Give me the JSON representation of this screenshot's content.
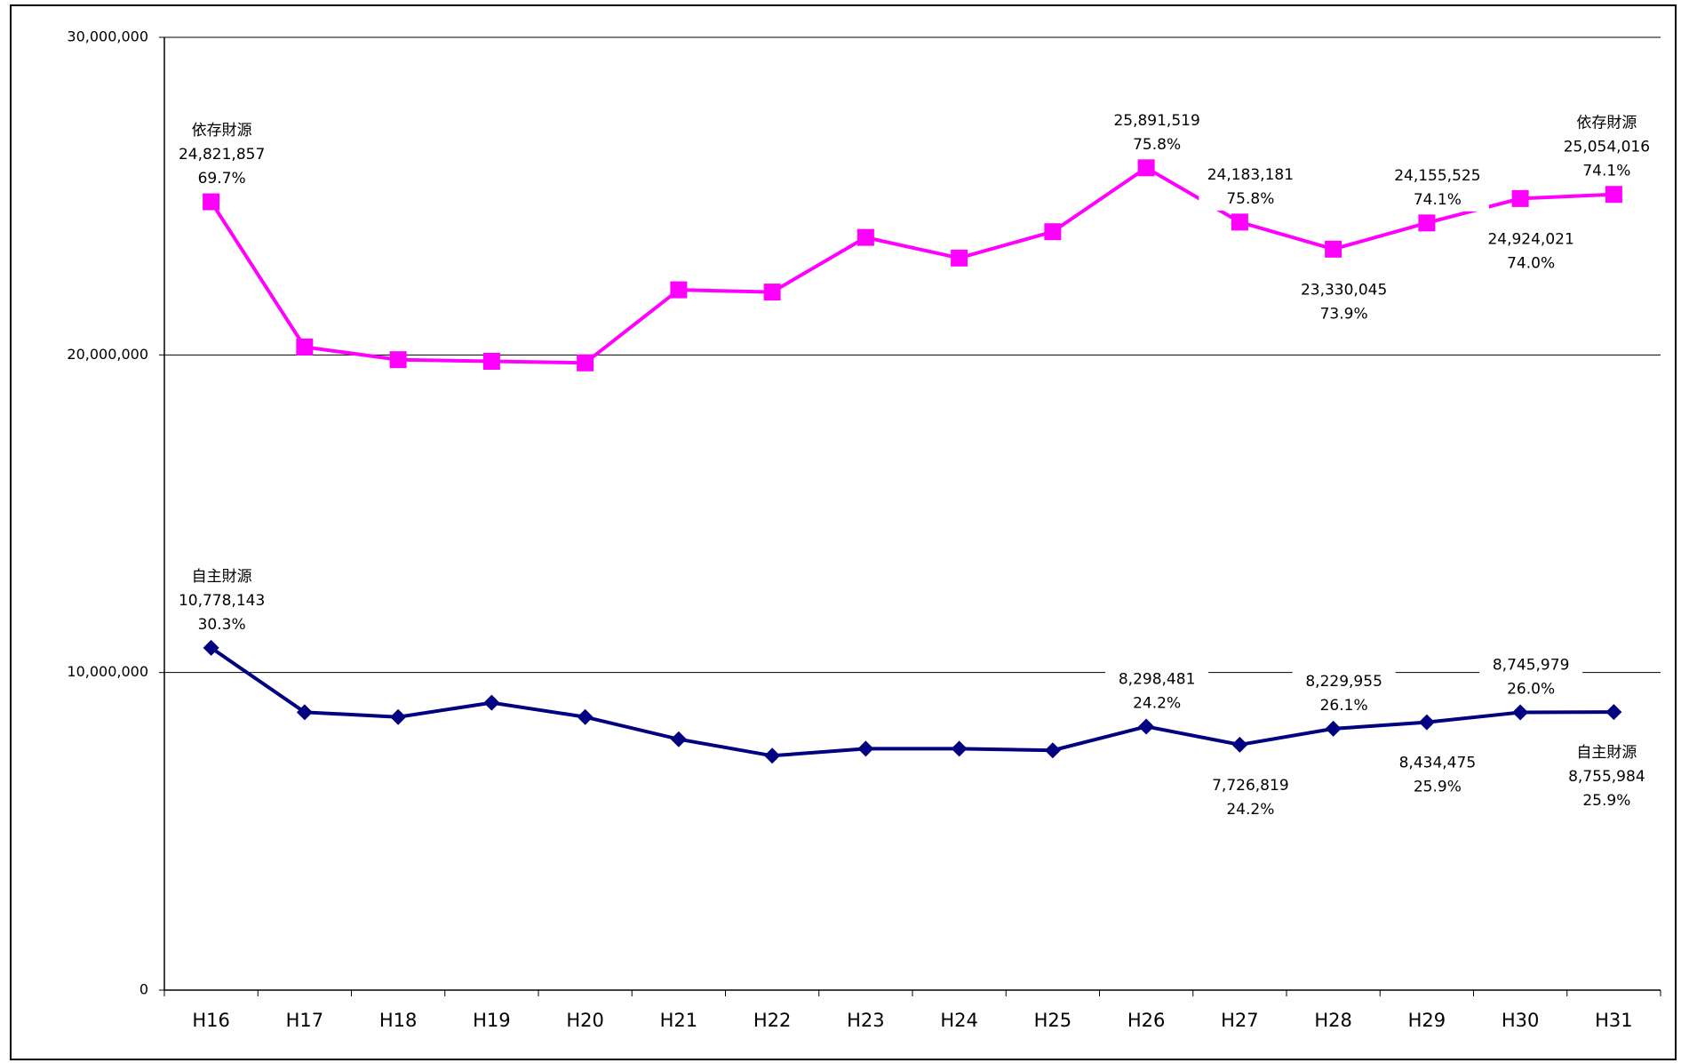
{
  "chart_data": {
    "type": "line",
    "categories": [
      "H16",
      "H17",
      "H18",
      "H19",
      "H20",
      "H21",
      "H22",
      "H23",
      "H24",
      "H25",
      "H26",
      "H27",
      "H28",
      "H29",
      "H30",
      "H31"
    ],
    "series": [
      {
        "name": "依存財源",
        "color": "#ff00ff",
        "marker": "square",
        "values": [
          24821857,
          20250000,
          19850000,
          19800000,
          19750000,
          22050000,
          21980000,
          23700000,
          23050000,
          23880000,
          25891519,
          24183181,
          23330045,
          24155525,
          24924021,
          25054016
        ],
        "value_labels": [
          "24,821,857",
          null,
          null,
          null,
          null,
          null,
          null,
          null,
          null,
          null,
          "25,891,519",
          "24,183,181",
          "23,330,045",
          "24,155,525",
          "24,924,021",
          "25,054,016"
        ],
        "percent_labels": [
          "69.7%",
          null,
          null,
          null,
          null,
          null,
          null,
          null,
          null,
          null,
          "75.8%",
          "75.8%",
          "73.9%",
          "74.1%",
          "74.0%",
          "74.1%"
        ]
      },
      {
        "name": "自主財源",
        "color": "#000080",
        "marker": "diamond",
        "values": [
          10778143,
          8750000,
          8600000,
          9050000,
          8600000,
          7900000,
          7380000,
          7600000,
          7600000,
          7550000,
          8298481,
          7726819,
          8229955,
          8434475,
          8745979,
          8755984
        ],
        "value_labels": [
          "10,778,143",
          null,
          null,
          null,
          null,
          null,
          null,
          null,
          null,
          null,
          "8,298,481",
          "7,726,819",
          "8,229,955",
          "8,434,475",
          "8,745,979",
          "8,755,984"
        ],
        "percent_labels": [
          "30.3%",
          null,
          null,
          null,
          null,
          null,
          null,
          null,
          null,
          null,
          "24.2%",
          "24.2%",
          "26.1%",
          "25.9%",
          "26.0%",
          "25.9%"
        ]
      }
    ],
    "ylim": [
      0,
      30000000
    ],
    "yticks": [
      0,
      {
        "value": 10000000,
        "label": "10,000,000"
      },
      {
        "value": 20000000,
        "label": "20,000,000"
      },
      {
        "value": 30000000,
        "label": "30,000,000"
      }
    ],
    "grid": true
  }
}
